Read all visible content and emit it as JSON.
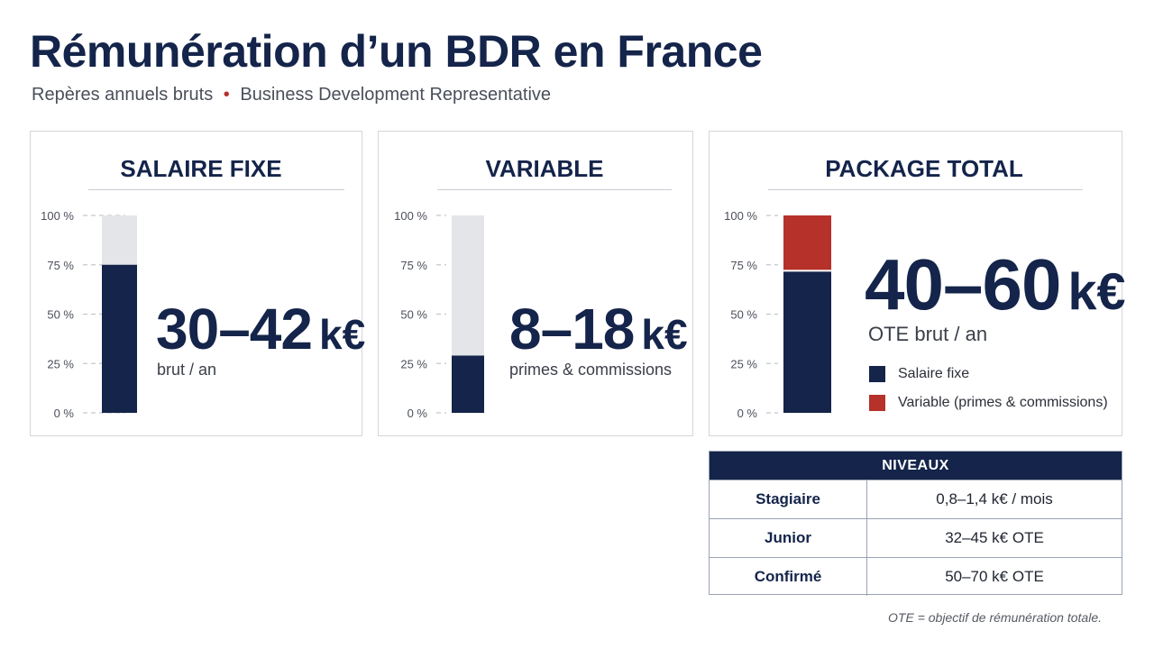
{
  "title": "Rémunération d’un BDR en France",
  "subtitle": {
    "left": "Repères annuels bruts",
    "separator": "•",
    "right": "Business Development Representative"
  },
  "colors": {
    "navy": "#14244a",
    "red": "#b5312a",
    "light_gray": "#e4e5e8"
  },
  "cards": {
    "fixe": {
      "title": "SALAIRE FIXE",
      "big_value": "30–42",
      "big_unit": "k€",
      "caption": "brut / an"
    },
    "variable": {
      "title": "VARIABLE",
      "big_value": "8–18",
      "big_unit": "k€",
      "caption": "primes & commissions"
    },
    "total": {
      "title": "PACKAGE TOTAL",
      "big_value": "40–60",
      "big_unit": "k€",
      "caption": "OTE brut / an",
      "legend": [
        {
          "label": "Salaire fixe",
          "color": "#14244a"
        },
        {
          "label": "Variable (primes & commissions)",
          "color": "#b5312a"
        }
      ]
    }
  },
  "chart_data": [
    {
      "type": "bar",
      "title": "SALAIRE FIXE",
      "ylim": [
        0,
        100
      ],
      "yticks": [
        "0 %",
        "25 %",
        "50 %",
        "75 %",
        "100 %"
      ],
      "series": [
        {
          "values": [
            75
          ]
        }
      ],
      "background_to": 100
    },
    {
      "type": "bar",
      "title": "VARIABLE",
      "ylim": [
        0,
        100
      ],
      "yticks": [
        "0 %",
        "25 %",
        "50 %",
        "75 %",
        "100 %"
      ],
      "series": [
        {
          "values": [
            29
          ]
        }
      ],
      "background_to": 100
    },
    {
      "type": "bar",
      "title": "PACKAGE TOTAL",
      "stacked": true,
      "ylim": [
        0,
        100
      ],
      "yticks": [
        "0 %",
        "25 %",
        "50 %",
        "75 %",
        "100 %"
      ],
      "series": [
        {
          "name": "Salaire fixe",
          "values": [
            72
          ]
        },
        {
          "name": "Variable (primes & commissions)",
          "values": [
            28
          ]
        }
      ]
    }
  ],
  "table": {
    "header": "NIVEAUX",
    "rows": [
      {
        "level": "Stagiaire",
        "value": "0,8–1,4 k€ / mois"
      },
      {
        "level": "Junior",
        "value": "32–45 k€ OTE"
      },
      {
        "level": "Confirmé",
        "value": "50–70 k€ OTE"
      }
    ]
  },
  "footnote": "OTE = objectif de rémunération totale."
}
